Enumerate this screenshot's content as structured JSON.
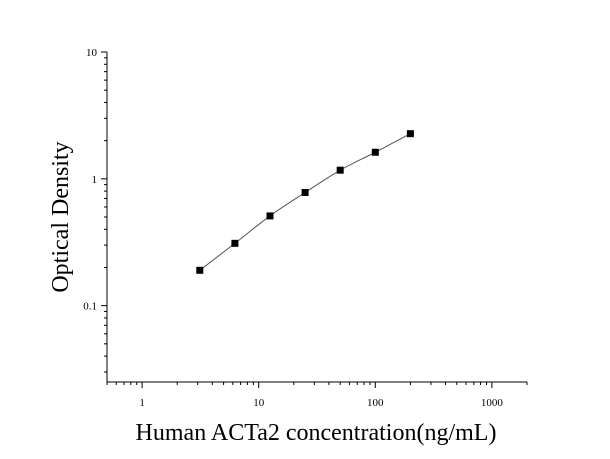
{
  "chart_data": {
    "type": "scatter",
    "title": "",
    "xlabel": "Human ACTa2 concentration(ng/mL)",
    "ylabel": "Optical Density",
    "x_scale": "log",
    "y_scale": "log",
    "xlim": [
      0.5,
      2000
    ],
    "ylim": [
      0.025,
      10
    ],
    "x_ticks": [
      "1",
      "10",
      "100",
      "1000"
    ],
    "y_ticks": [
      "10",
      "1",
      "0.1"
    ],
    "grid": false,
    "legend": "none",
    "series": [
      {
        "x": [
          3.125,
          6.25,
          12.5,
          25,
          50,
          100,
          200
        ],
        "y": [
          0.19,
          0.31,
          0.51,
          0.78,
          1.17,
          1.62,
          2.27
        ],
        "marker": "square",
        "fit_curve": true
      }
    ]
  }
}
